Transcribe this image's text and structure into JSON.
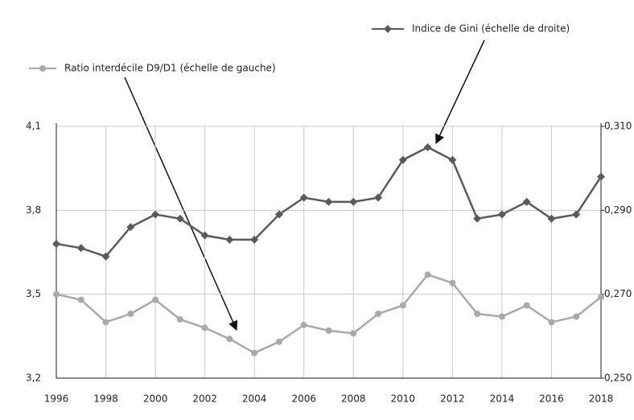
{
  "chart_data": {
    "type": "line",
    "x": [
      1996,
      1997,
      1998,
      1999,
      2000,
      2001,
      2002,
      2003,
      2004,
      2005,
      2006,
      2007,
      2008,
      2009,
      2010,
      2011,
      2012,
      2013,
      2014,
      2015,
      2016,
      2017,
      2018
    ],
    "series": [
      {
        "name": "Ratio interdécile D9/D1 (échelle de gauche)",
        "color": "#a9a9a9",
        "marker": "circle",
        "values": [
          3.5,
          3.48,
          3.4,
          3.43,
          3.48,
          3.41,
          3.38,
          3.34,
          3.29,
          3.33,
          3.39,
          3.37,
          3.36,
          3.43,
          3.46,
          3.57,
          3.54,
          3.43,
          3.42,
          3.46,
          3.4,
          3.42,
          3.49
        ]
      },
      {
        "name": "Indice de Gini (échelle de droite)",
        "color": "#5a5a5a",
        "marker": "diamond",
        "axis": "y2",
        "values": [
          0.282,
          0.281,
          0.279,
          0.286,
          0.289,
          0.288,
          0.284,
          0.283,
          0.283,
          0.289,
          0.293,
          0.292,
          0.292,
          0.293,
          0.302,
          0.305,
          0.302,
          0.288,
          0.289,
          0.292,
          0.288,
          0.289,
          0.298
        ]
      }
    ],
    "xlim": [
      1996,
      2018
    ],
    "xticks": [
      1996,
      1998,
      2000,
      2002,
      2004,
      2006,
      2008,
      2010,
      2012,
      2014,
      2016,
      2018
    ],
    "ylim": [
      3.2,
      4.1
    ],
    "yticks": [
      {
        "value": 3.2,
        "label": "3,2"
      },
      {
        "value": 3.5,
        "label": "3,5"
      },
      {
        "value": 3.8,
        "label": "3,8"
      },
      {
        "value": 4.1,
        "label": "4,1"
      }
    ],
    "y2lim": [
      0.25,
      0.31
    ],
    "y2ticks": [
      {
        "value": 0.25,
        "label": "0,250"
      },
      {
        "value": 0.27,
        "label": "0,270"
      },
      {
        "value": 0.29,
        "label": "0,290"
      },
      {
        "value": 0.31,
        "label": "0,310"
      }
    ],
    "grid": true
  }
}
